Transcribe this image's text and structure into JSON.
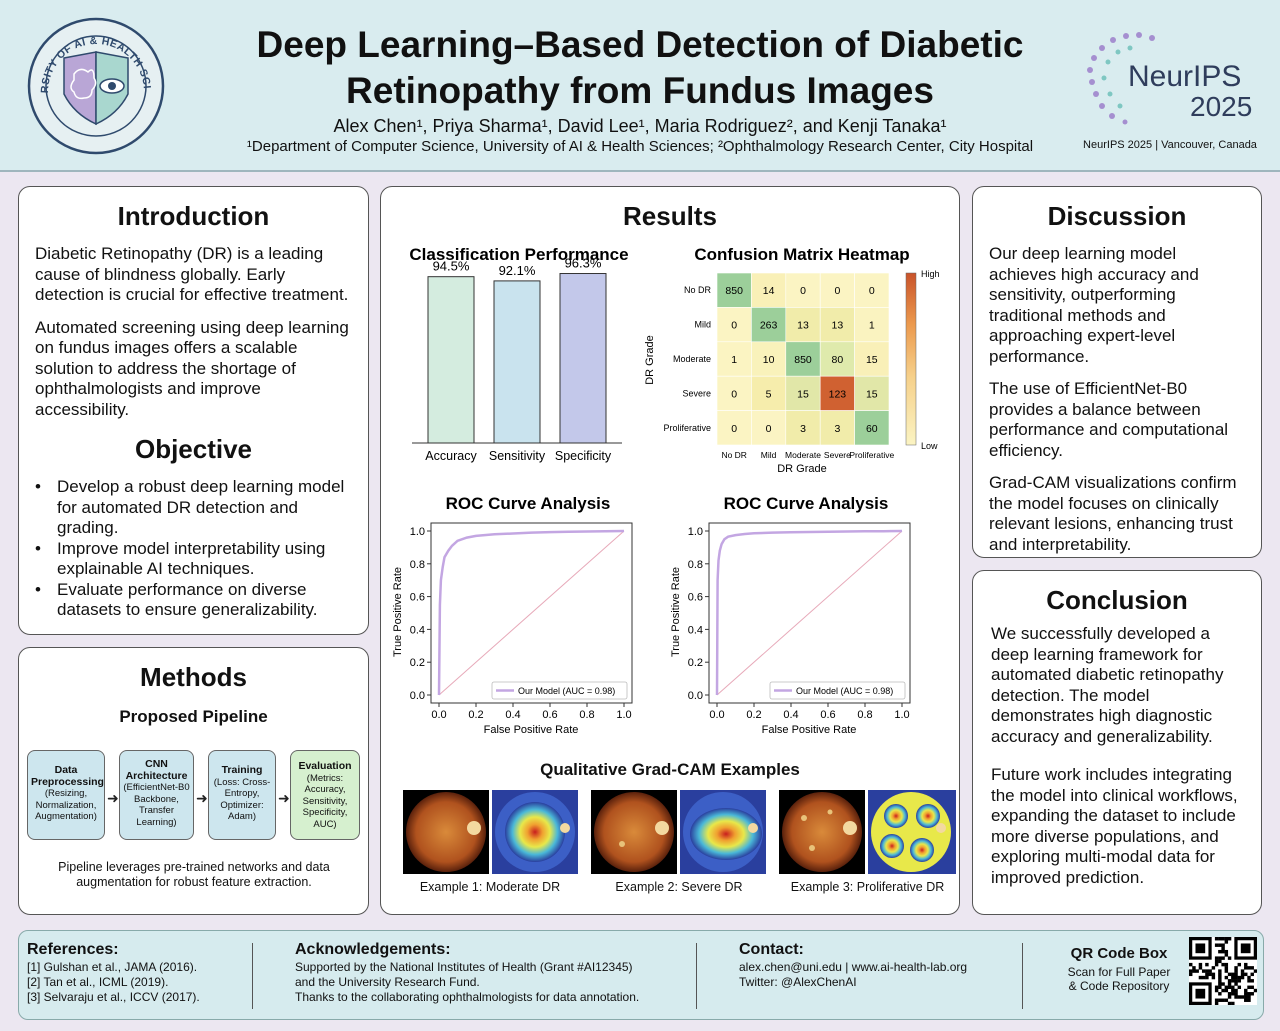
{
  "header": {
    "logo_text": "UNIVERSITY OF AI & HEALTH SCIENCES",
    "title_line1": "Deep Learning–Based Detection of Diabetic",
    "title_line2": "Retinopathy from Fundus Images",
    "authors": "Alex Chen¹, Priya Sharma¹, David Lee¹, Maria Rodriguez², and Kenji Tanaka¹",
    "affiliations": "¹Department of Computer Science, University of AI & Health Sciences; ²Ophthalmology Research Center, City Hospital",
    "conf_name": "NeurIPS",
    "conf_year": "2025",
    "conf_sub": "NeurIPS 2025 | Vancouver, Canada"
  },
  "introduction": {
    "heading": "Introduction",
    "p1": "Diabetic Retinopathy (DR) is a leading cause of blindness globally. Early detection is crucial for effective treatment.",
    "p2": "Automated screening using deep learning on fundus images offers a scalable solution to address the shortage of ophthalmologists and improve accessibility."
  },
  "objective": {
    "heading": "Objective",
    "items": [
      "Develop a robust deep learning model for automated DR detection and grading.",
      "Improve model interpretability using explainable AI techniques.",
      "Evaluate performance on diverse datasets to ensure generalizability."
    ]
  },
  "methods": {
    "heading": "Methods",
    "subheading": "Proposed Pipeline",
    "steps": [
      {
        "title": "Data Preprocessing",
        "detail": "(Resizing, Normalization, Augmentation)"
      },
      {
        "title": "CNN Architecture",
        "detail": "(EfficientNet-B0 Backbone, Transfer Learning)"
      },
      {
        "title": "Training",
        "detail": "(Loss: Cross-Entropy, Optimizer: Adam)"
      },
      {
        "title": "Evaluation",
        "detail": "(Metrics: Accuracy, Sensitivity, Specificity, AUC)"
      }
    ],
    "note": "Pipeline leverages pre-trained networks and data augmentation for robust feature extraction."
  },
  "results": {
    "heading": "Results",
    "gradcam_title": "Qualitative Grad-CAM Examples",
    "gradcam_captions": [
      "Example 1: Moderate DR",
      "Example 2: Severe DR",
      "Example 3: Proliferative DR"
    ]
  },
  "chart_data": [
    {
      "type": "bar",
      "title": "Classification Performance",
      "categories": [
        "Accuracy",
        "Sensitivity",
        "Specificity"
      ],
      "values": [
        94.5,
        92.1,
        96.3
      ],
      "value_labels": [
        "94.5%",
        "92.1%",
        "96.3%"
      ],
      "colors": [
        "#d4ecdf",
        "#c9e3ee",
        "#c3c8ea"
      ]
    },
    {
      "type": "heatmap",
      "title": "Confusion Matrix Heatmap",
      "xlabel": "DR Grade",
      "ylabel": "DR Grade",
      "labels": [
        "No DR",
        "Mild",
        "Moderate",
        "Severe",
        "Proliferative"
      ],
      "matrix": [
        [
          850,
          14,
          0,
          0,
          0
        ],
        [
          0,
          263,
          13,
          13,
          1
        ],
        [
          1,
          10,
          850,
          80,
          15
        ],
        [
          0,
          5,
          15,
          123,
          15
        ],
        [
          0,
          0,
          3,
          3,
          60
        ]
      ],
      "colorbar_high": "High",
      "colorbar_low": "Low"
    },
    {
      "type": "line",
      "title": "ROC Curve Analysis",
      "xlabel": "False Positive Rate",
      "ylabel": "True Positive Rate",
      "xlim": [
        0,
        1
      ],
      "ylim": [
        0,
        1
      ],
      "ticks": [
        "0.0",
        "0.2",
        "0.4",
        "0.6",
        "0.8",
        "1.0"
      ],
      "series": [
        {
          "name": "Our Model (AUC = 0.98)",
          "x": [
            0,
            0.005,
            0.01,
            0.02,
            0.03,
            0.05,
            0.07,
            0.1,
            0.15,
            0.2,
            0.3,
            0.4,
            0.5,
            0.6,
            0.7,
            0.8,
            0.9,
            1.0
          ],
          "y": [
            0,
            0.55,
            0.7,
            0.78,
            0.84,
            0.88,
            0.91,
            0.94,
            0.96,
            0.97,
            0.98,
            0.985,
            0.99,
            0.993,
            0.995,
            0.997,
            0.999,
            1.0
          ]
        },
        {
          "x": [
            0,
            1
          ],
          "y": [
            0,
            1
          ]
        }
      ]
    },
    {
      "type": "line",
      "title": "ROC Curve Analysis",
      "xlabel": "False Positive Rate",
      "ylabel": "True Positive Rate",
      "xlim": [
        0,
        1
      ],
      "ylim": [
        0,
        1
      ],
      "ticks": [
        "0.0",
        "0.2",
        "0.4",
        "0.6",
        "0.8",
        "1.0"
      ],
      "series": [
        {
          "name": "Our Model (AUC = 0.98)",
          "x": [
            0,
            0.003,
            0.008,
            0.015,
            0.025,
            0.04,
            0.06,
            0.1,
            0.15,
            0.2,
            0.3,
            0.4,
            0.5,
            0.6,
            0.7,
            0.8,
            0.9,
            1.0
          ],
          "y": [
            0,
            0.7,
            0.82,
            0.88,
            0.92,
            0.95,
            0.965,
            0.975,
            0.982,
            0.986,
            0.99,
            0.992,
            0.994,
            0.996,
            0.997,
            0.998,
            0.999,
            1.0
          ]
        },
        {
          "x": [
            0,
            1
          ],
          "y": [
            0,
            1
          ]
        }
      ]
    }
  ],
  "discussion": {
    "heading": "Discussion",
    "p1": "Our deep learning model achieves high accuracy and sensitivity, outperforming traditional methods and approaching expert-level performance.",
    "p2": "The use of EfficientNet-B0 provides a balance between performance and computational efficiency.",
    "p3": "Grad-CAM visualizations confirm the model focuses on clinically relevant lesions, enhancing trust and interpretability."
  },
  "conclusion": {
    "heading": "Conclusion",
    "p1": "We successfully developed a deep learning framework for automated diabetic retinopathy detection. The model demonstrates high diagnostic accuracy and generalizability.",
    "p2": "Future work includes integrating the model into clinical workflows, expanding the dataset to include more diverse populations, and exploring multi-modal data for improved prediction."
  },
  "footer": {
    "references_heading": "References:",
    "references": [
      "[1] Gulshan et al., JAMA (2016).",
      "[2] Tan et al., ICML (2019).",
      "[3] Selvaraju et al., ICCV (2017)."
    ],
    "ack_heading": "Acknowledgements:",
    "ack": [
      "Supported by the National Institutes of Health (Grant #AI12345)",
      "and the University Research Fund.",
      "Thanks to the collaborating ophthalmologists for data annotation."
    ],
    "contact_heading": "Contact:",
    "contact": [
      "alex.chen@uni.edu | www.ai-health-lab.org",
      "Twitter: @AlexChenAI"
    ],
    "qr_heading": "QR Code Box",
    "qr_sub1": "Scan for Full Paper",
    "qr_sub2": "& Code Repository"
  }
}
